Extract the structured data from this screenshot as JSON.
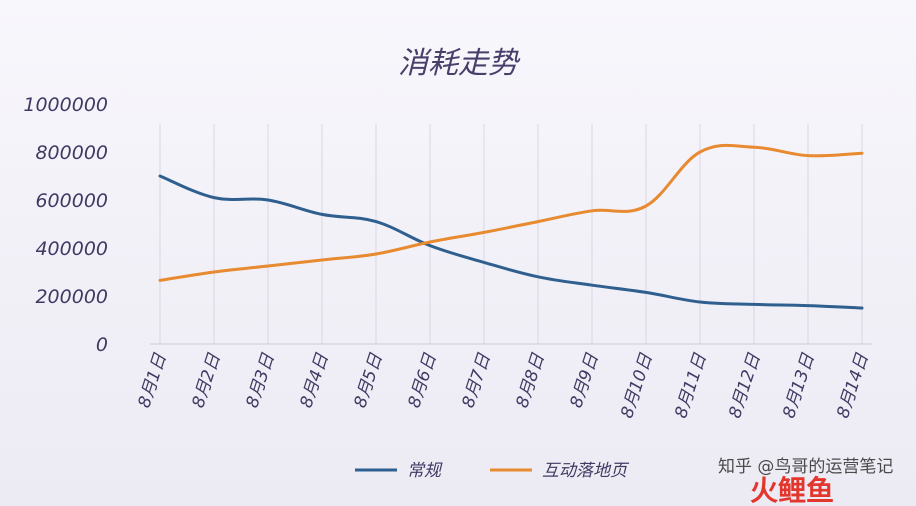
{
  "chart_data": {
    "type": "line",
    "title": "消耗走势",
    "xlabel": "",
    "ylabel": "",
    "categories": [
      "8月1日",
      "8月2日",
      "8月3日",
      "8月4日",
      "8月5日",
      "8月6日",
      "8月7日",
      "8月8日",
      "8月9日",
      "8月10日",
      "8月11日",
      "8月12日",
      "8月13日",
      "8月14日"
    ],
    "ylim": [
      0,
      1000000
    ],
    "yticks": [
      "0",
      "200000",
      "400000",
      "600000",
      "800000",
      "1000000"
    ],
    "grid": true,
    "legend_position": "bottom",
    "series": [
      {
        "name": "常规",
        "color": "#2e5f8f",
        "values": [
          700000,
          610000,
          600000,
          540000,
          510000,
          410000,
          340000,
          280000,
          245000,
          215000,
          175000,
          165000,
          160000,
          150000
        ]
      },
      {
        "name": "互动落地页",
        "color": "#e88a2f",
        "values": [
          265000,
          300000,
          325000,
          350000,
          375000,
          425000,
          465000,
          510000,
          555000,
          575000,
          800000,
          820000,
          785000,
          795000
        ]
      }
    ]
  },
  "watermark": {
    "text": "知乎 @鸟哥的运营笔记",
    "logo_text": "火鲤鱼"
  }
}
